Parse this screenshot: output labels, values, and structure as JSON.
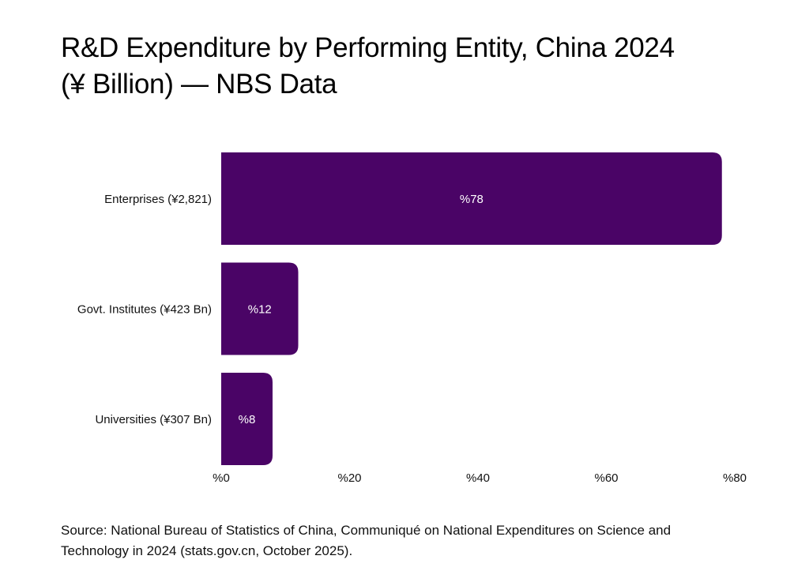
{
  "title_lines": [
    "R&D Expenditure by Performing Entity, China 2024",
    "(¥ Billion) — NBS Data"
  ],
  "source_lines": [
    "Source: National Bureau of Statistics of China, Communiqué on National Expenditures on Science and",
    "Technology in 2024 (stats.gov.cn, October 2025)."
  ],
  "colors": {
    "bar": "#4a0466",
    "background": "#ffffff",
    "text": "#000000"
  },
  "chart_data": {
    "type": "bar",
    "orientation": "horizontal",
    "categories": [
      "Enterprises (¥2,821)",
      "Govt. Institutes (¥423 Bn)",
      "Universities (¥307 Bn)"
    ],
    "values": [
      78,
      12,
      8
    ],
    "data_labels": [
      "%78",
      "%12",
      "%8"
    ],
    "xlim": [
      0,
      80
    ],
    "x_ticks": [
      0,
      20,
      40,
      60,
      80
    ],
    "x_tick_labels": [
      "%0",
      "%20",
      "%40",
      "%60",
      "%80"
    ],
    "grid": false,
    "legend": "none"
  }
}
